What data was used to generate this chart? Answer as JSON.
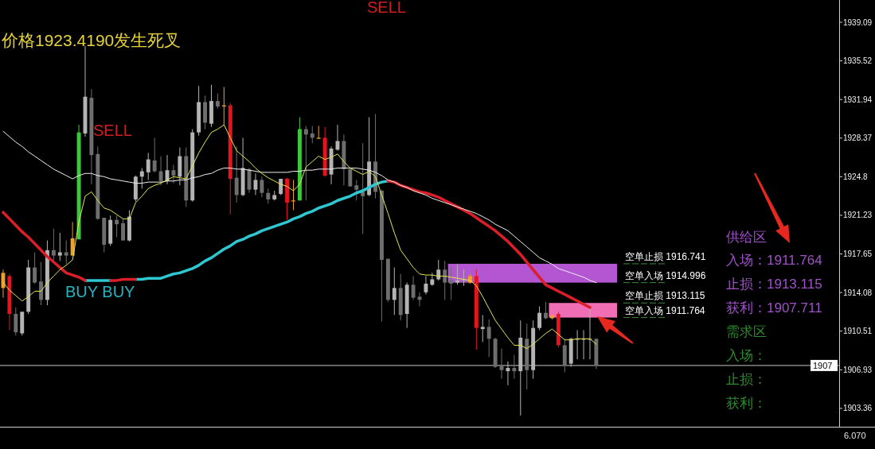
{
  "chart_data": {
    "type": "candlestick",
    "categories": [
      null,
      null,
      null,
      null,
      null,
      null,
      null,
      null,
      null,
      null,
      null,
      null,
      null,
      null,
      null,
      null,
      null,
      null,
      null,
      null,
      null,
      null,
      null,
      null,
      null,
      null,
      null,
      null,
      null,
      null,
      null,
      null,
      null,
      null,
      null,
      null,
      null,
      null,
      null,
      null,
      null,
      null,
      null,
      null,
      null,
      null,
      null,
      null,
      null,
      null,
      null,
      null,
      null,
      null,
      null,
      null,
      null,
      null,
      null,
      null,
      null,
      null,
      null,
      null,
      null,
      null,
      null,
      null,
      null,
      null,
      null,
      null,
      null,
      null,
      null,
      null,
      null,
      null,
      null,
      null,
      null,
      null,
      null,
      null,
      null,
      null,
      null,
      null,
      null,
      null,
      null,
      null,
      null,
      null,
      null
    ],
    "ohlc": [
      [
        1914.5,
        1916.2,
        1913.6,
        1915.9
      ],
      [
        1915.6,
        1915.8,
        1910.6,
        1912.1
      ],
      [
        1912.1,
        1912.7,
        1910.1,
        1910.4
      ],
      [
        1910.3,
        1912.3,
        1910.1,
        1912.3
      ],
      [
        1912.3,
        1917.1,
        1912.1,
        1916.4
      ],
      [
        1916.4,
        1917.8,
        1914.9,
        1915.0
      ],
      [
        1915.1,
        1916.9,
        1912.9,
        1913.4
      ],
      [
        1913.4,
        1918.9,
        1912.9,
        1918.0
      ],
      [
        1918.0,
        1920.0,
        1916.9,
        1917.5
      ],
      [
        1917.5,
        1919.6,
        1917.0,
        1917.8
      ],
      [
        1917.8,
        1918.9,
        1916.7,
        1917.5
      ],
      [
        1917.5,
        1920.6,
        1917.5,
        1919.1
      ],
      [
        1919.0,
        1929.6,
        1919.0,
        1928.9
      ],
      [
        1928.8,
        1936.9,
        1928.5,
        1932.2
      ],
      [
        1932.1,
        1932.9,
        1924.1,
        1926.8
      ],
      [
        1926.9,
        1927.6,
        1920.8,
        1920.9
      ],
      [
        1921.0,
        1921.0,
        1917.8,
        1918.5
      ],
      [
        1918.6,
        1921.2,
        1918.4,
        1920.8
      ],
      [
        1920.8,
        1921.2,
        1919.2,
        1920.4
      ],
      [
        1920.5,
        1920.9,
        1918.9,
        1918.9
      ],
      [
        1918.9,
        1921.7,
        1918.8,
        1921.1
      ],
      [
        1922.7,
        1924.9,
        1922.5,
        1924.8
      ],
      [
        1924.8,
        1925.6,
        1923.7,
        1925.3
      ],
      [
        1925.2,
        1927.0,
        1924.5,
        1926.4
      ],
      [
        1926.3,
        1928.4,
        1925.2,
        1925.3
      ],
      [
        1925.3,
        1926.7,
        1924.0,
        1924.4
      ],
      [
        1924.4,
        1926.8,
        1924.1,
        1925.4
      ],
      [
        1925.4,
        1925.9,
        1924.2,
        1924.9
      ],
      [
        1924.8,
        1927.5,
        1924.0,
        1926.7
      ],
      [
        1926.7,
        1927.5,
        1922.0,
        1922.6
      ],
      [
        1922.6,
        1929.2,
        1922.5,
        1928.9
      ],
      [
        1928.9,
        1933.2,
        1928.6,
        1931.7
      ],
      [
        1931.7,
        1932.3,
        1929.2,
        1929.8
      ],
      [
        1929.7,
        1933.3,
        1929.4,
        1931.8
      ],
      [
        1931.8,
        1932.5,
        1931.1,
        1931.3
      ],
      [
        1931.4,
        1933.1,
        1929.6,
        1931.3
      ],
      [
        1931.4,
        1931.6,
        1921.3,
        1924.6
      ],
      [
        1924.7,
        1927.6,
        1922.4,
        1923.1
      ],
      [
        1923.1,
        1928.4,
        1923.0,
        1925.6
      ],
      [
        1925.5,
        1925.6,
        1923.3,
        1923.6
      ],
      [
        1923.6,
        1925.1,
        1923.1,
        1924.5
      ],
      [
        1924.5,
        1924.8,
        1922.9,
        1923.3
      ],
      [
        1923.3,
        1923.7,
        1922.3,
        1922.7
      ],
      [
        1922.7,
        1923.5,
        1922.6,
        1923.1
      ],
      [
        1923.2,
        1924.6,
        1923.1,
        1924.6
      ],
      [
        1924.6,
        1924.7,
        1920.8,
        1922.4
      ],
      [
        1922.6,
        1924.5,
        1921.7,
        1922.6
      ],
      [
        1922.6,
        1930.3,
        1922.6,
        1929.2
      ],
      [
        1929.2,
        1929.5,
        1922.6,
        1928.7
      ],
      [
        1928.8,
        1929.5,
        1927.9,
        1928.4
      ],
      [
        1928.4,
        1929.5,
        1928.3,
        1928.4
      ],
      [
        1928.4,
        1929.4,
        1924.8,
        1924.9
      ],
      [
        1925.0,
        1927.6,
        1924.1,
        1927.4
      ],
      [
        1927.3,
        1929.6,
        1927.2,
        1928.1
      ],
      [
        1928.1,
        1928.7,
        1924.0,
        1925.5
      ],
      [
        1925.5,
        1925.6,
        1923.9,
        1923.9
      ],
      [
        1924.0,
        1924.5,
        1922.6,
        1923.6
      ],
      [
        1923.4,
        1927.9,
        1919.5,
        1923.0
      ],
      [
        1923.1,
        1930.3,
        1923.0,
        1926.2
      ],
      [
        1926.2,
        1930.6,
        1922.8,
        1923.4
      ],
      [
        1923.5,
        1923.6,
        1911.4,
        1917.1
      ],
      [
        1917.2,
        1917.2,
        1913.2,
        1913.4
      ],
      [
        1913.4,
        1916.4,
        1912.0,
        1914.5
      ],
      [
        1914.5,
        1915.8,
        1911.5,
        1912.0
      ],
      [
        1912.1,
        1915.0,
        1910.8,
        1914.8
      ],
      [
        1914.8,
        1915.6,
        1913.4,
        1913.6
      ],
      [
        1913.7,
        1914.1,
        1912.8,
        1913.4
      ],
      [
        1914.1,
        1915.6,
        1913.9,
        1914.9
      ],
      [
        1914.8,
        1915.9,
        1914.7,
        1915.3
      ],
      [
        1915.3,
        1917.1,
        1915.2,
        1916.2
      ],
      [
        1916.2,
        1917.0,
        1913.4,
        1915.0
      ],
      [
        1915.2,
        1916.4,
        1913.4,
        1914.9
      ],
      [
        1915.0,
        1916.7,
        1914.8,
        1915.2
      ],
      [
        1915.3,
        1916.2,
        1914.7,
        1915.3
      ],
      [
        1915.0,
        1915.8,
        1914.9,
        1915.6
      ],
      [
        1915.6,
        1916.2,
        1908.8,
        1910.8
      ],
      [
        1910.7,
        1912.0,
        1909.5,
        1910.9
      ],
      [
        1910.9,
        1911.6,
        1908.1,
        1909.8
      ],
      [
        1909.8,
        1909.9,
        1907.1,
        1907.2
      ],
      [
        1907.3,
        1908.9,
        1906.1,
        1906.9
      ],
      [
        1906.8,
        1907.7,
        1905.5,
        1907.1
      ],
      [
        1907.1,
        1908.3,
        1906.1,
        1906.8
      ],
      [
        1906.8,
        1911.5,
        1902.7,
        1909.9
      ],
      [
        1909.8,
        1911.2,
        1905.1,
        1906.9
      ],
      [
        1906.9,
        1911.5,
        1906.1,
        1910.8
      ],
      [
        1910.8,
        1912.8,
        1910.6,
        1912.2
      ],
      [
        1912.2,
        1913.2,
        1911.6,
        1911.7
      ],
      [
        1911.7,
        1912.0,
        1911.6,
        1912.0
      ],
      [
        1912.1,
        1912.3,
        1909.0,
        1909.2
      ],
      [
        1909.2,
        1909.8,
        1906.7,
        1907.3
      ],
      [
        1907.5,
        1909.9,
        1907.2,
        1909.8
      ],
      [
        1909.8,
        1910.6,
        1907.9,
        1909.8
      ],
      [
        1909.8,
        1910.6,
        1907.9,
        1909.8
      ],
      [
        1909.8,
        1912.7,
        1907.9,
        1909.8
      ],
      [
        1909.8,
        1909.8,
        1907.0,
        1907.3
      ]
    ],
    "colors": [
      "#f0a028",
      "#e6141e",
      "#6e6e6e",
      "#b4b4b4",
      "#b4b4b4",
      "#6e6e6e",
      "#6e6e6e",
      "#b4b4b4",
      "#6e6e6e",
      "#b4b4b4",
      "#6e6e6e",
      "#f0a028",
      "#3cc83c",
      "#b4b4b4",
      "#6e6e6e",
      "#6e6e6e",
      "#6e6e6e",
      "#b4b4b4",
      "#6e6e6e",
      "#6e6e6e",
      "#b4b4b4",
      "#b4b4b4",
      "#b4b4b4",
      "#b4b4b4",
      "#6e6e6e",
      "#6e6e6e",
      "#b4b4b4",
      "#6e6e6e",
      "#b4b4b4",
      "#6e6e6e",
      "#b4b4b4",
      "#b4b4b4",
      "#6e6e6e",
      "#b4b4b4",
      "#6e6e6e",
      "#f0a028",
      "#e6141e",
      "#6e6e6e",
      "#b4b4b4",
      "#6e6e6e",
      "#b4b4b4",
      "#6e6e6e",
      "#6e6e6e",
      "#b4b4b4",
      "#b4b4b4",
      "#e6141e",
      "#f0a028",
      "#3cc83c",
      "#6e6e6e",
      "#6e6e6e",
      "#f0a028",
      "#e6141e",
      "#b4b4b4",
      "#b4b4b4",
      "#6e6e6e",
      "#6e6e6e",
      "#6e6e6e",
      "#6e6e6e",
      "#b4b4b4",
      "#6e6e6e",
      "#6e6e6e",
      "#6e6e6e",
      "#b4b4b4",
      "#6e6e6e",
      "#b4b4b4",
      "#6e6e6e",
      "#6e6e6e",
      "#b4b4b4",
      "#b4b4b4",
      "#b4b4b4",
      "#6e6e6e",
      "#6e6e6e",
      "#b4b4b4",
      "#b4b4b4",
      "#f0a028",
      "#e6141e",
      "#b4b4b4",
      "#6e6e6e",
      "#6e6e6e",
      "#6e6e6e",
      "#b4b4b4",
      "#6e6e6e",
      "#b4b4b4",
      "#6e6e6e",
      "#b4b4b4",
      "#b4b4b4",
      "#6e6e6e",
      "#f0a028",
      "#e6141e",
      "#6e6e6e",
      "#b4b4b4",
      "#b4b4b4",
      "#b4b4b4",
      "#b4b4b4",
      "#6e6e6e"
    ],
    "series": [
      {
        "type": "line",
        "color": "#e6e650",
        "values": [
          1915.0,
          1914.3,
          1913.8,
          1913.3,
          1913.7,
          1914.2,
          1914.2,
          1915.0,
          1915.6,
          1916.2,
          1916.6,
          1917.1,
          1920.6,
          1923.0,
          1923.4,
          1922.6,
          1921.9,
          1921.7,
          1921.3,
          1920.9,
          1920.9,
          1922.4,
          1923.0,
          1923.7,
          1924.0,
          1924.2,
          1924.5,
          1924.8,
          1924.7,
          1924.6,
          1925.8,
          1927.0,
          1928.0,
          1928.9,
          1929.2,
          1929.6,
          1928.4,
          1927.2,
          1926.7,
          1926.2,
          1925.6,
          1925.1,
          1924.7,
          1924.4,
          1924.1,
          1923.9,
          1923.5,
          1924.1,
          1925.7,
          1926.2,
          1926.7,
          1926.4,
          1926.6,
          1926.9,
          1926.2,
          1925.6,
          1925.3,
          1925.0,
          1925.3,
          1924.8,
          1923.1,
          1921.4,
          1919.6,
          1918.0,
          1917.2,
          1916.4,
          1915.8,
          1915.7,
          1915.7,
          1915.6,
          1915.6,
          1915.5,
          1915.4,
          1915.3,
          1915.2,
          1914.7,
          1913.7,
          1912.6,
          1911.5,
          1910.7,
          1909.9,
          1909.2,
          1909.2,
          1908.9,
          1909.3,
          1909.8,
          1910.3,
          1910.7,
          1910.2,
          1909.7,
          1909.7,
          1909.8,
          1909.8,
          1909.8,
          1909.3
        ]
      },
      {
        "type": "line",
        "color": "#f0f0f0",
        "values": [
          1929.0,
          1928.5,
          1928.0,
          1927.6,
          1927.1,
          1926.7,
          1926.3,
          1925.9,
          1925.5,
          1925.2,
          1924.9,
          1924.6,
          1924.9,
          1925.1,
          1925.1,
          1924.9,
          1924.8,
          1924.6,
          1924.5,
          1924.4,
          1924.3,
          1924.2,
          1924.2,
          1924.3,
          1924.3,
          1924.3,
          1924.4,
          1924.4,
          1924.5,
          1924.5,
          1924.7,
          1924.8,
          1925.0,
          1925.1,
          1925.4,
          1925.6,
          1925.6,
          1925.5,
          1925.5,
          1925.4,
          1925.3,
          1925.2,
          1925.2,
          1925.2,
          1925.2,
          1925.2,
          1925.3,
          1925.3,
          1925.4,
          1925.4,
          1925.5,
          1925.5,
          1925.5,
          1925.6,
          1925.6,
          1925.6,
          1925.6,
          1925.5,
          1925.4,
          1925.2,
          1924.9,
          1924.5,
          1924.3,
          1924.0,
          1923.8,
          1923.5,
          1923.3,
          1923.1,
          1922.8,
          1922.6,
          1922.4,
          1922.2,
          1922.0,
          1921.8,
          1921.6,
          1921.4,
          1921.1,
          1920.8,
          1920.4,
          1920.1,
          1919.8,
          1919.3,
          1918.8,
          1918.3,
          1917.8,
          1917.3,
          1917.0,
          1916.7,
          1916.3,
          1916.1,
          1915.9,
          1915.7,
          1915.5,
          1915.2,
          1915.0
        ]
      },
      {
        "type": "line",
        "color": "#dc1e28",
        "values": [
          1921.5,
          1920.9,
          1920.3,
          1919.7,
          1919.2,
          1918.6,
          1918.0,
          1917.4,
          1916.9,
          1916.4,
          1915.9,
          1915.7,
          1915.5,
          1915.2,
          null,
          null,
          null,
          1915.2,
          1915.2,
          1915.3,
          1915.3,
          1915.3,
          null,
          null,
          null,
          null,
          null,
          null,
          null,
          null,
          null,
          null,
          null,
          null,
          null,
          null,
          null,
          null,
          null,
          null,
          null,
          null,
          null,
          null,
          null,
          null,
          null,
          null,
          null,
          null,
          null,
          null,
          null,
          null,
          null,
          null,
          null,
          null,
          null,
          null,
          null,
          1924.4,
          1924.3,
          1924.0,
          1923.8,
          1923.6,
          1923.4,
          1923.3,
          1923.1,
          1922.9,
          1922.6,
          1922.3,
          1922.0,
          1921.7,
          1921.4,
          1921.0,
          1920.6,
          1920.2,
          1919.8,
          1919.3,
          1918.8,
          1918.2,
          1917.6,
          1916.9,
          1916.2,
          1915.5,
          1914.8,
          1914.5,
          1914.2,
          1913.9,
          1913.6,
          1913.3,
          1913.0,
          1912.7,
          null
        ]
      },
      {
        "type": "line",
        "color": "#2ec8d2",
        "values": [
          null,
          null,
          null,
          null,
          null,
          null,
          null,
          null,
          null,
          null,
          null,
          null,
          null,
          1915.2,
          1915.2,
          1915.2,
          1915.2,
          1915.2,
          null,
          null,
          null,
          1915.3,
          1915.3,
          1915.4,
          1915.4,
          1915.4,
          1915.6,
          1915.8,
          1915.9,
          1916.1,
          1916.3,
          1916.6,
          1917.0,
          1917.3,
          1917.7,
          1918.1,
          1918.4,
          1918.8,
          1919.0,
          1919.3,
          1919.5,
          1919.8,
          1920.0,
          1920.2,
          1920.4,
          1920.6,
          1920.9,
          1921.1,
          1921.4,
          1921.6,
          1921.9,
          1922.1,
          1922.3,
          1922.6,
          1922.8,
          1923.0,
          1923.3,
          1923.5,
          1923.8,
          1924.1,
          1924.3,
          1924.4,
          null,
          null,
          null,
          null,
          null,
          null,
          null,
          null,
          null,
          null,
          null,
          null,
          null,
          null,
          null,
          null,
          null,
          null,
          null,
          null,
          null,
          null,
          null,
          null,
          null,
          null,
          null,
          null,
          null,
          null,
          null,
          null,
          null
        ]
      }
    ],
    "ylim": [
      1901.66,
      1941.15
    ],
    "yticks": [
      1903.36,
      1906.93,
      1910.51,
      1914.08,
      1917.65,
      1921.23,
      1924.8,
      1928.37,
      1931.94,
      1935.52,
      1939.09
    ],
    "tick_labels": "y",
    "ref_lines": [
      {
        "axis": "y",
        "value": 1907.33,
        "label": "1907",
        "color": "#c8c8c8",
        "line_style": "solid"
      },
      {
        "axis": "y",
        "value": 1916.741,
        "label": "空单止损 1916.741",
        "color": "#3c8c3c",
        "line_style": "dashed"
      },
      {
        "axis": "y",
        "value": 1914.996,
        "label": "空单入场 1914.996",
        "color": "#3c8c3c",
        "line_style": "dashed"
      },
      {
        "axis": "y",
        "value": 1913.115,
        "label": "空单止损 1913.115",
        "color": "#3c8c3c",
        "line_style": "dashed"
      },
      {
        "axis": "y",
        "value": 1911.764,
        "label": "空单入场 1911.764",
        "color": "#3c8c3c",
        "line_style": "dashed"
      }
    ],
    "bands": [
      {
        "axis": "y",
        "from": 1914.996,
        "to": 1916.741,
        "color": "#b455d2"
      },
      {
        "axis": "y",
        "from": 1911.764,
        "to": 1913.115,
        "color": "#f06eb4"
      }
    ],
    "annotations": [
      "SELL",
      "价格1923.4190发生死叉",
      "SELL",
      "BUY BUY",
      "供给区",
      "入场：1911.764",
      "止损：1913.115",
      "获利：1907.711",
      "需求区",
      "入场：",
      "止损：",
      "获利：",
      "6.070"
    ]
  }
}
